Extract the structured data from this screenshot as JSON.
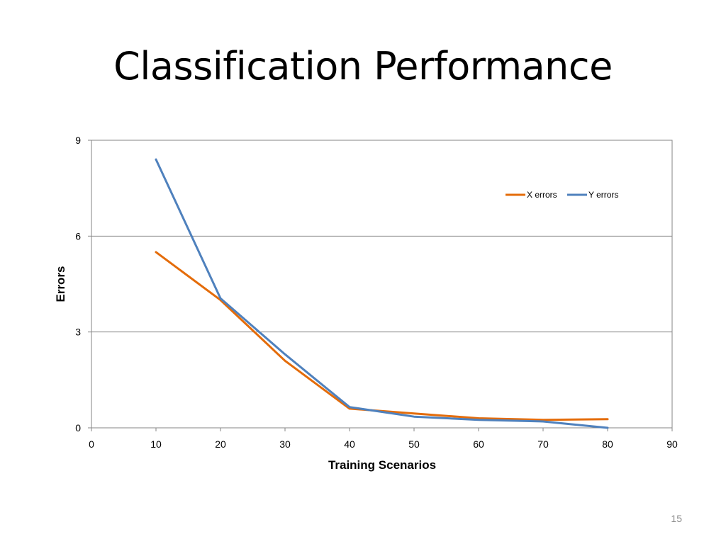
{
  "slide": {
    "title": "Classification Performance",
    "number": "15"
  },
  "chart_data": {
    "type": "line",
    "title": "",
    "xlabel": "Training Scenarios",
    "ylabel": "Errors",
    "xlim": [
      0,
      90
    ],
    "ylim": [
      0,
      9
    ],
    "x_ticks": [
      0,
      10,
      20,
      30,
      40,
      50,
      60,
      70,
      80,
      90
    ],
    "y_ticks": [
      0,
      3,
      6,
      9
    ],
    "grid": "horizontal",
    "legend_position": "top-right",
    "series": [
      {
        "name": "X errors",
        "color": "#E46C0A",
        "x": [
          10,
          20,
          30,
          40,
          50,
          60,
          70,
          80
        ],
        "values": [
          5.5,
          4.0,
          2.1,
          0.6,
          0.45,
          0.3,
          0.25,
          0.27
        ]
      },
      {
        "name": "Y errors",
        "color": "#4F81BD",
        "x": [
          10,
          20,
          30,
          40,
          50,
          60,
          70,
          80
        ],
        "values": [
          8.4,
          4.05,
          2.3,
          0.65,
          0.35,
          0.25,
          0.2,
          0.0
        ]
      }
    ]
  }
}
